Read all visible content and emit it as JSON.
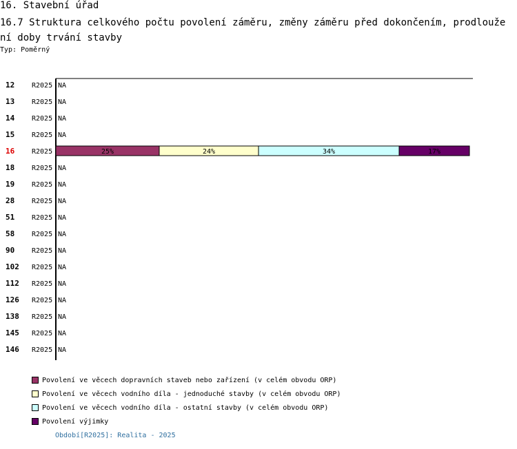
{
  "header": {
    "title": "16. Stavební úřad",
    "subtitle": "16.7 Struktura celkového počtu povolení záměru, změny záměru před dokončením, prodloužení doby trvání stavby",
    "type_label": "Typ: ",
    "type_value": "Poměrný"
  },
  "chart_data": {
    "type": "bar",
    "orientation": "horizontal",
    "stacked": true,
    "normalized": true,
    "period_label": "R2025",
    "highlight_category": "16",
    "highlight_color": "#dd0000",
    "na_label": "NA",
    "categories": [
      "12",
      "13",
      "14",
      "15",
      "16",
      "18",
      "19",
      "28",
      "51",
      "58",
      "90",
      "102",
      "112",
      "126",
      "138",
      "145",
      "146"
    ],
    "series": [
      {
        "name": "Povolení ve věcech dopravních staveb nebo zařízení (v celém obvodu ORP)",
        "color": "#993366",
        "values": [
          null,
          null,
          null,
          null,
          25,
          null,
          null,
          null,
          null,
          null,
          null,
          null,
          null,
          null,
          null,
          null,
          null
        ]
      },
      {
        "name": "Povolení ve věcech vodního díla - jednoduché stavby (v celém obvodu ORP)",
        "color": "#ffffcc",
        "values": [
          null,
          null,
          null,
          null,
          24,
          null,
          null,
          null,
          null,
          null,
          null,
          null,
          null,
          null,
          null,
          null,
          null
        ]
      },
      {
        "name": "Povolení ve věcech vodního díla - ostatní stavby (v celém obvodu ORP)",
        "color": "#ccffff",
        "values": [
          null,
          null,
          null,
          null,
          34,
          null,
          null,
          null,
          null,
          null,
          null,
          null,
          null,
          null,
          null,
          null,
          null
        ]
      },
      {
        "name": "Povolení výjimky",
        "color": "#660066",
        "values": [
          null,
          null,
          null,
          null,
          17,
          null,
          null,
          null,
          null,
          null,
          null,
          null,
          null,
          null,
          null,
          null,
          null
        ]
      }
    ],
    "data_labels": [
      [
        null,
        null,
        null,
        null,
        "25%",
        null,
        null,
        null,
        null,
        null,
        null,
        null,
        null,
        null,
        null,
        null,
        null
      ],
      [
        null,
        null,
        null,
        null,
        "24%",
        null,
        null,
        null,
        null,
        null,
        null,
        null,
        null,
        null,
        null,
        null,
        null
      ],
      [
        null,
        null,
        null,
        null,
        "34%",
        null,
        null,
        null,
        null,
        null,
        null,
        null,
        null,
        null,
        null,
        null,
        null
      ],
      [
        null,
        null,
        null,
        null,
        "17%",
        null,
        null,
        null,
        null,
        null,
        null,
        null,
        null,
        null,
        null,
        null,
        null
      ]
    ],
    "xlim": [
      0,
      100
    ],
    "legend_position": "bottom"
  },
  "footer": {
    "text": "Období[R2025]: Realita - 2025"
  }
}
